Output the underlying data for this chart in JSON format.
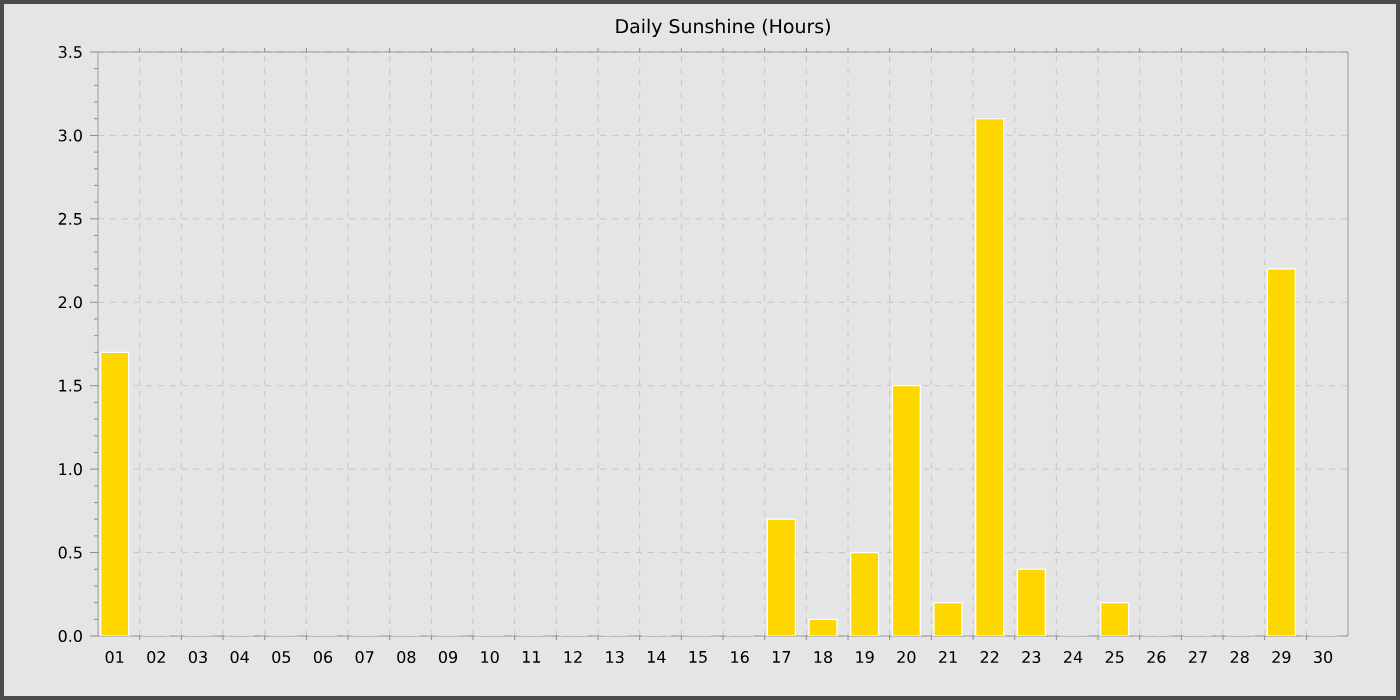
{
  "chart_data": {
    "type": "bar",
    "title": "Daily Sunshine (Hours)",
    "categories": [
      "01",
      "02",
      "03",
      "04",
      "05",
      "06",
      "07",
      "08",
      "09",
      "10",
      "11",
      "12",
      "13",
      "14",
      "15",
      "16",
      "17",
      "18",
      "19",
      "20",
      "21",
      "22",
      "23",
      "24",
      "25",
      "26",
      "27",
      "28",
      "29",
      "30"
    ],
    "values": [
      1.7,
      0,
      0,
      0,
      0,
      0,
      0,
      0,
      0,
      0,
      0,
      0,
      0,
      0,
      0,
      0,
      0.7,
      0.1,
      0.5,
      1.5,
      0.2,
      3.1,
      0.4,
      0,
      0.2,
      0,
      0,
      0,
      2.2,
      0
    ],
    "color": "#ffd700",
    "ylim": [
      0,
      3.5
    ],
    "yticks": [
      {
        "value": 0,
        "label": "0.0"
      },
      {
        "value": 0.5,
        "label": "0.5"
      },
      {
        "value": 1,
        "label": "1.0"
      },
      {
        "value": 1.5,
        "label": "1.5"
      },
      {
        "value": 2,
        "label": "2.0"
      },
      {
        "value": 2.5,
        "label": "2.5"
      },
      {
        "value": 3,
        "label": "3.0"
      },
      {
        "value": 3.5,
        "label": "3.5"
      }
    ],
    "grid": true
  }
}
